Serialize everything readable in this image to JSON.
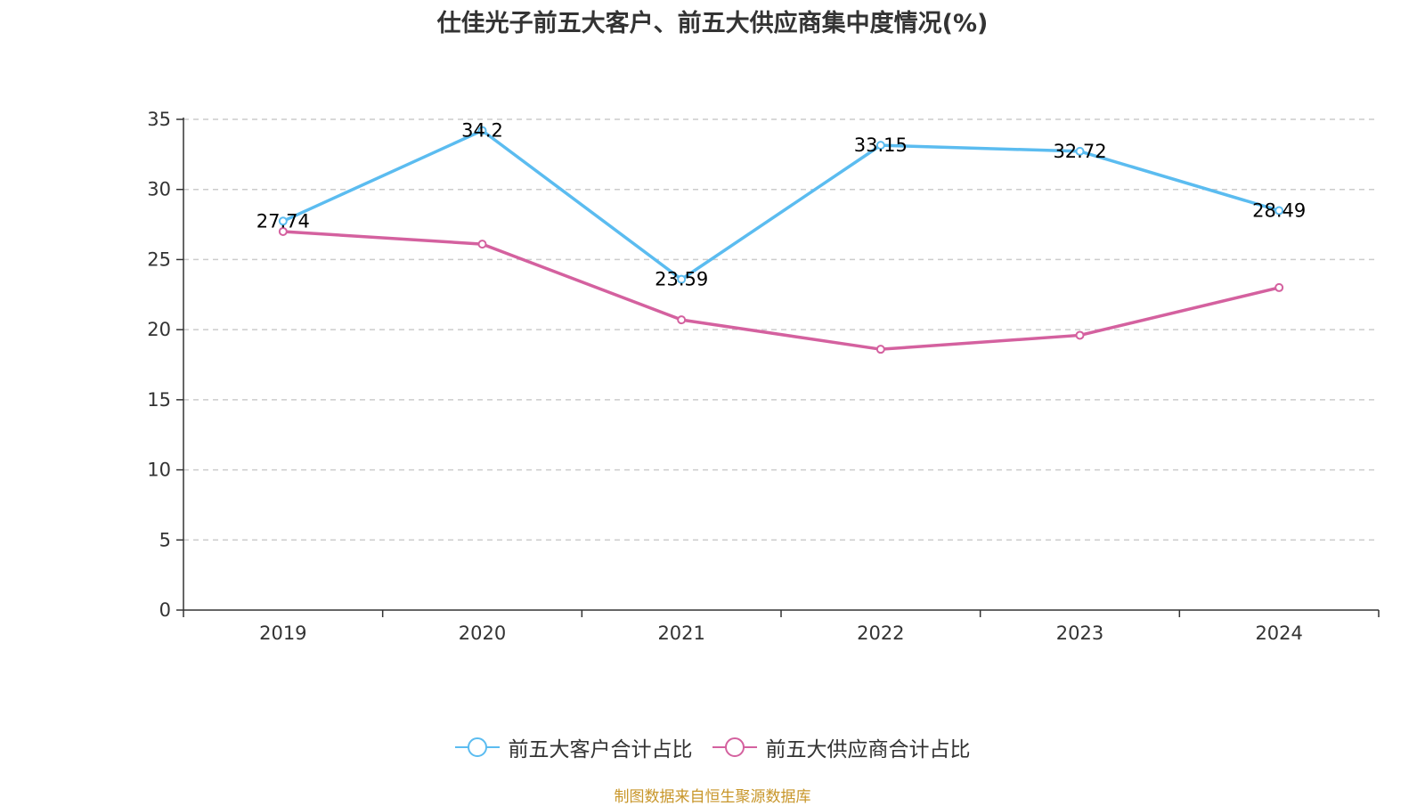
{
  "title": "仕佳光子前五大客户、前五大供应商集中度情况(%)",
  "source": "制图数据来自恒生聚源数据库",
  "colors": {
    "customers": "#5bbcf0",
    "suppliers": "#d4619f",
    "source_text": "#c8962a"
  },
  "chart_data": {
    "type": "line",
    "title": "仕佳光子前五大客户、前五大供应商集中度情况(%)",
    "categories": [
      "2019",
      "2020",
      "2021",
      "2022",
      "2023",
      "2024"
    ],
    "ylim": [
      0,
      35
    ],
    "yticks": [
      "0",
      "5",
      "10",
      "15",
      "20",
      "25",
      "30",
      "35"
    ],
    "grid": true,
    "legend_position": "bottom",
    "series": [
      {
        "name": "前五大客户合计占比",
        "values": [
          27.74,
          34.2,
          23.59,
          33.15,
          32.72,
          28.49
        ],
        "labels": [
          "27.74",
          "34.2",
          "23.59",
          "33.15",
          "32.72",
          "28.49"
        ],
        "show_labels": true
      },
      {
        "name": "前五大供应商合计占比",
        "values": [
          27.0,
          26.1,
          20.7,
          18.6,
          19.6,
          23.0
        ],
        "show_labels": false
      }
    ]
  }
}
